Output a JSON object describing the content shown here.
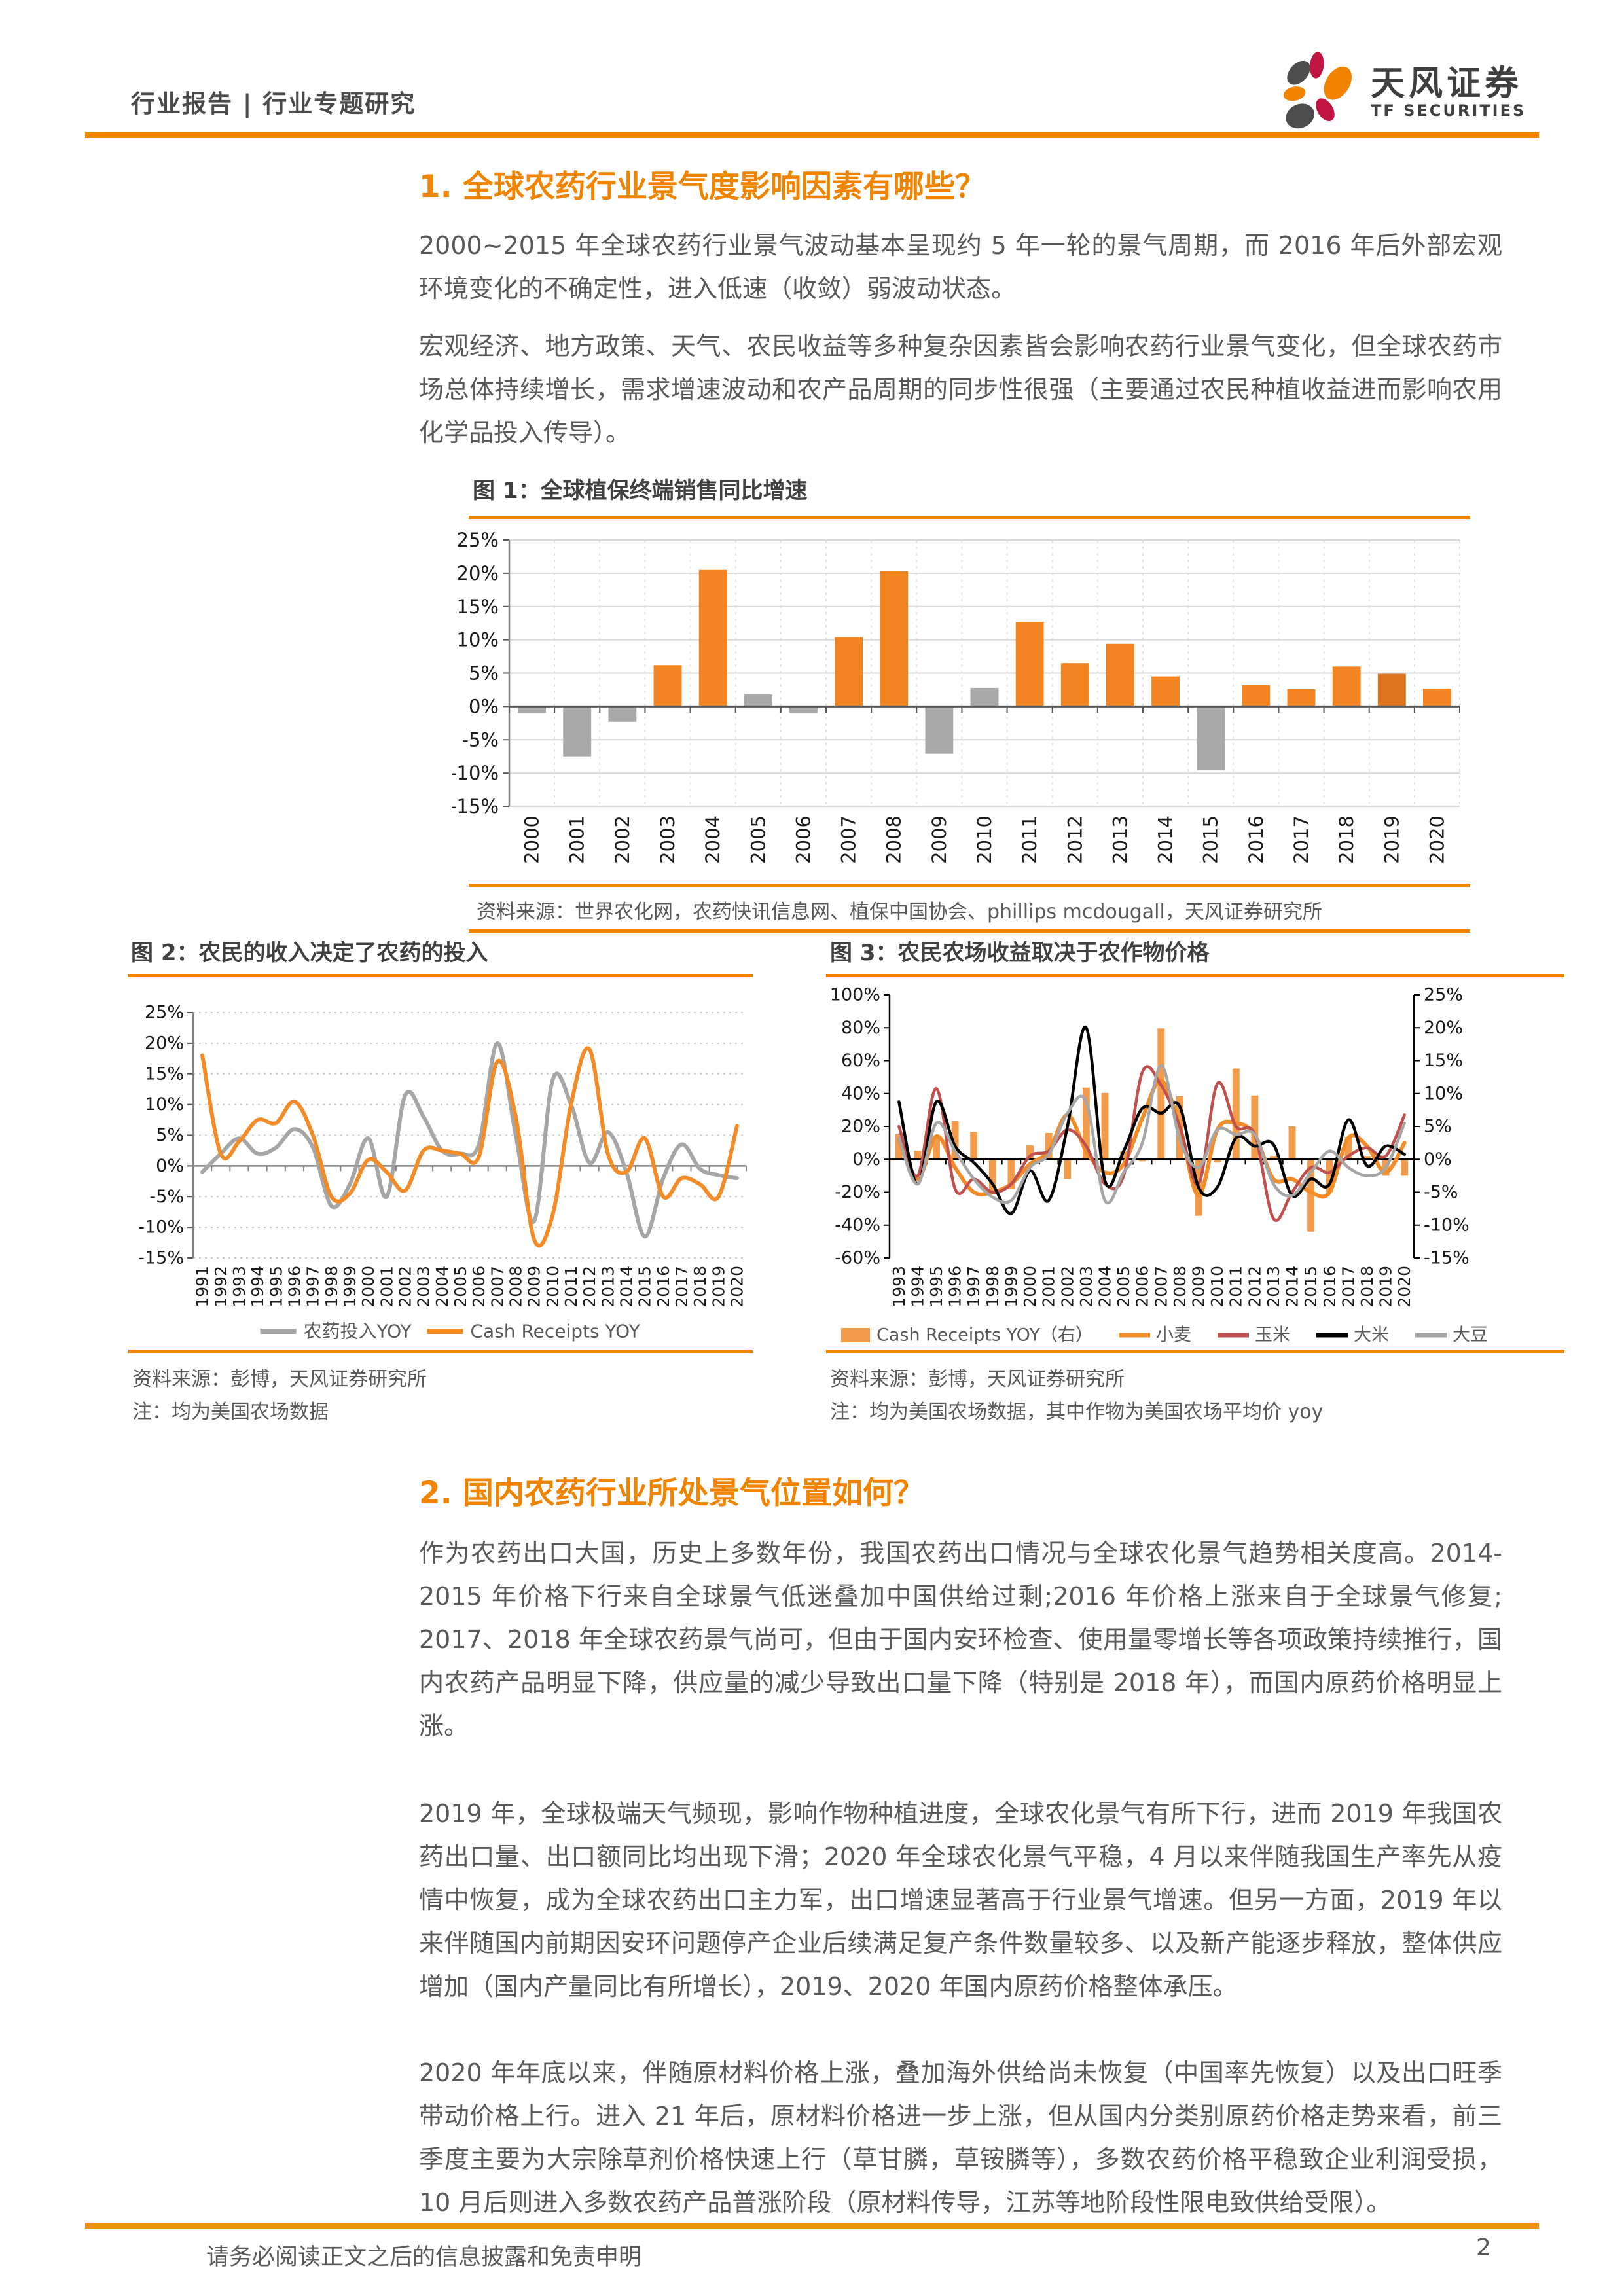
{
  "header": {
    "left_title": "行业报告 | 行业专题研究",
    "brand": {
      "name_cn": "天风证券",
      "name_en": "TF SECURITIES"
    }
  },
  "sections": {
    "s1": {
      "title": "1. 全球农药行业景气度影响因素有哪些？"
    },
    "s2": {
      "title": "2. 国内农药行业所处景气位置如何？"
    }
  },
  "paragraphs": {
    "p1": "2000~2015 年全球农药行业景气波动基本呈现约 5 年一轮的景气周期，而 2016 年后外部宏观环境变化的不确定性，进入低速（收敛）弱波动状态。",
    "p2": "宏观经济、地方政策、天气、农民收益等多种复杂因素皆会影响农药行业景气变化，但全球农药市场总体持续增长，需求增速波动和农产品周期的同步性很强（主要通过农民种植收益进而影响农用化学品投入传导）。",
    "p3": "作为农药出口大国，历史上多数年份，我国农药出口情况与全球农化景气趋势相关度高。2014-2015 年价格下行来自全球景气低迷叠加中国供给过剩;2016 年价格上涨来自于全球景气修复; 2017、2018 年全球农药景气尚可，但由于国内安环检查、使用量零增长等各项政策持续推行，国内农药产品明显下降，供应量的减少导致出口量下降（特别是 2018 年），而国内原药价格明显上涨。",
    "p4": "2019 年，全球极端天气频现，影响作物种植进度，全球农化景气有所下行，进而 2019 年我国农药出口量、出口额同比均出现下滑；2020 年全球农化景气平稳，4 月以来伴随我国生产率先从疫情中恢复，成为全球农药出口主力军，出口增速显著高于行业景气增速。但另一方面，2019 年以来伴随国内前期因安环问题停产企业后续满足复产条件数量较多、以及新产能逐步释放，整体供应增加（国内产量同比有所增长），2019、2020 年国内原药价格整体承压。",
    "p5": "2020 年年底以来，伴随原材料价格上涨，叠加海外供给尚未恢复（中国率先恢复）以及出口旺季带动价格上行。进入 21 年后，原材料价格进一步上涨，但从国内分类别原药价格走势来看，前三季度主要为大宗除草剂价格快速上行（草甘膦，草铵膦等），多数农药价格平稳致企业利润受损，10 月后则进入多数农药产品普涨阶段（原材料传导，江苏等地阶段性限电致供给受限）。"
  },
  "figures": {
    "fig1": {
      "title": "图 1：全球植保终端销售同比增速",
      "source": "资料来源：世界农化网，农药快讯信息网、植保中国协会、phillips mcdougall，天风证券研究所"
    },
    "fig2": {
      "title": "图 2：农民的收入决定了农药的投入",
      "source": "资料来源：彭博，天风证券研究所",
      "note": "注：均为美国农场数据"
    },
    "fig3": {
      "title": "图 3：农民农场收益取决于农作物价格",
      "source": "资料来源：彭博，天风证券研究所",
      "note": "注：均为美国农场数据，其中作物为美国农场平均价 yoy"
    }
  },
  "footer": {
    "disclaimer": "请务必阅读正文之后的信息披露和免责申明",
    "page_number": "2"
  },
  "colors": {
    "accent_orange": "#F08300",
    "bar_orange": "#F28422",
    "bar_orange_dark": "#DE741E",
    "bar_gray": "#A9A9A9",
    "fig3_bar_orange": "#F29B4A",
    "line_gray": "#A6A6A6",
    "line_orange": "#F28C28",
    "line_red": "#C0504D",
    "line_black": "#000000",
    "grid": "#D9D9D9",
    "axis": "#808080",
    "body_text": "#595959"
  },
  "chart_data": [
    {
      "type": "bar",
      "title": "全球植保终端销售同比增速",
      "categories": [
        "2000",
        "2001",
        "2002",
        "2003",
        "2004",
        "2005",
        "2006",
        "2007",
        "2008",
        "2009",
        "2010",
        "2011",
        "2012",
        "2013",
        "2014",
        "2015",
        "2016",
        "2017",
        "2018",
        "2019",
        "2020"
      ],
      "values": [
        -1.0,
        -7.5,
        -2.3,
        6.2,
        20.5,
        1.8,
        -1.0,
        10.4,
        20.3,
        -7.1,
        2.8,
        12.7,
        6.5,
        9.4,
        4.5,
        -9.6,
        3.2,
        2.6,
        6.0,
        4.9,
        2.7
      ],
      "bar_color_keys": [
        "gray",
        "gray",
        "gray",
        "orange",
        "orange",
        "gray",
        "gray",
        "orange",
        "orange",
        "gray",
        "gray",
        "orange",
        "orange",
        "orange",
        "orange",
        "gray",
        "orange",
        "orange",
        "orange",
        "orange_dark",
        "orange"
      ],
      "xlabel": "",
      "ylabel": "",
      "ylim": [
        -15,
        25
      ],
      "ytick_step": 5,
      "ytick_suffix": "%",
      "grid": true,
      "legend_position": "none"
    },
    {
      "type": "line",
      "title": "农民的收入决定了农药的投入",
      "x": [
        "1991",
        "1992",
        "1993",
        "1994",
        "1995",
        "1996",
        "1997",
        "1998",
        "1999",
        "2000",
        "2001",
        "2002",
        "2003",
        "2004",
        "2005",
        "2006",
        "2007",
        "2008",
        "2009",
        "2010",
        "2011",
        "2012",
        "2013",
        "2014",
        "2015",
        "2016",
        "2017",
        "2018",
        "2019",
        "2020"
      ],
      "series": [
        {
          "name": "农药投入YOY",
          "color_key": "line_gray",
          "values": [
            -1,
            2,
            4.5,
            2,
            3,
            6,
            3,
            -6.5,
            -3,
            4.5,
            -5,
            11.5,
            8,
            2.5,
            2,
            3.5,
            20,
            5,
            -9,
            14,
            10,
            0.5,
            5.5,
            -1,
            -11.5,
            -2,
            3.5,
            -0.5,
            -1.5,
            -2
          ]
        },
        {
          "name": "Cash Receipts YOY",
          "color_key": "line_orange",
          "values": [
            18,
            2,
            4,
            7.5,
            7,
            10.5,
            5,
            -5,
            -4.5,
            1,
            -1,
            -4,
            2.5,
            2.5,
            2,
            1.5,
            17,
            8,
            -12,
            -8,
            10,
            19,
            2,
            -1,
            4.5,
            -5,
            -2,
            -3,
            -5,
            6.5
          ]
        }
      ],
      "ylim": [
        -15,
        25
      ],
      "ytick_step": 5,
      "ytick_suffix": "%",
      "grid": "dotted",
      "legend_position": "bottom"
    },
    {
      "type": "combo",
      "title": "农民农场收益取决于农作物价格",
      "x": [
        "1993",
        "1994",
        "1995",
        "1996",
        "1997",
        "1998",
        "1999",
        "2000",
        "2001",
        "2002",
        "2003",
        "2004",
        "2005",
        "2006",
        "2007",
        "2008",
        "2009",
        "2010",
        "2011",
        "2012",
        "2013",
        "2014",
        "2015",
        "2016",
        "2017",
        "2018",
        "2019",
        "2020"
      ],
      "bars": {
        "name": "Cash Receipts YOY（右）",
        "axis": "right",
        "color_key": "fig3_bar_orange",
        "values": [
          3.8,
          1.3,
          3.5,
          5.8,
          4.2,
          -5.2,
          -4.5,
          2.1,
          4.0,
          -3.0,
          10.9,
          10.1,
          1.2,
          -0.3,
          19.9,
          9.6,
          -8.6,
          -0.5,
          13.8,
          9.7,
          0.5,
          5.0,
          -11.0,
          -5.0,
          3.4,
          0.5,
          -2.5,
          -2.5
        ]
      },
      "series": [
        {
          "name": "小麦",
          "axis": "left",
          "color_key": "line_orange",
          "width": 6,
          "values": [
            12,
            -12,
            14,
            -5,
            -20,
            -20,
            -15,
            -3,
            5,
            27,
            5,
            -8,
            -3,
            25,
            48,
            20,
            -22,
            18,
            22,
            15,
            -12,
            -12,
            -20,
            -20,
            13,
            8,
            -8,
            10
          ]
        },
        {
          "name": "玉米",
          "axis": "left",
          "color_key": "line_red",
          "width": 4.5,
          "values": [
            20,
            -10,
            43,
            -18,
            -12,
            -20,
            -15,
            2,
            5,
            18,
            8,
            -15,
            -10,
            53,
            45,
            20,
            -15,
            46,
            20,
            15,
            -36,
            -20,
            -5,
            -8,
            2,
            7,
            2,
            27
          ]
        },
        {
          "name": "大米",
          "axis": "left",
          "color_key": "line_black",
          "width": 4.5,
          "values": [
            35,
            -15,
            35,
            8,
            -2,
            -15,
            -33,
            -7,
            -25,
            20,
            80,
            -13,
            5,
            31,
            28,
            32,
            -17,
            -17,
            13,
            8,
            9,
            -22,
            -12,
            -15,
            24,
            -4,
            8,
            3
          ]
        },
        {
          "name": "大豆",
          "axis": "left",
          "color_key": "line_gray",
          "width": 4.5,
          "values": [
            13,
            -15,
            22,
            5,
            -12,
            -23,
            -25,
            -5,
            3,
            28,
            35,
            -25,
            -8,
            10,
            57,
            12,
            -5,
            18,
            15,
            15,
            -15,
            -22,
            -8,
            5,
            -5,
            -10,
            -5,
            22
          ]
        }
      ],
      "ylim_left": [
        -60,
        100
      ],
      "ytick_step_left": 20,
      "ylim_right": [
        -15,
        25
      ],
      "ytick_step_right": 5,
      "ytick_suffix": "%",
      "grid": false,
      "legend_position": "bottom"
    }
  ]
}
